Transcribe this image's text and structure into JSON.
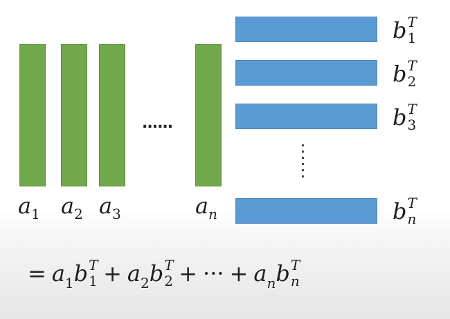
{
  "columns": {
    "a1": {
      "base": "a",
      "sub": "1"
    },
    "a2": {
      "base": "a",
      "sub": "2"
    },
    "a3": {
      "base": "a",
      "sub": "3"
    },
    "an": {
      "base": "a",
      "sub": "n"
    },
    "h_ellipsis": "......"
  },
  "rows": {
    "b1": {
      "base": "b",
      "sub": "1",
      "sup": "T"
    },
    "b2": {
      "base": "b",
      "sub": "2",
      "sup": "T"
    },
    "b3": {
      "base": "b",
      "sub": "3",
      "sup": "T"
    },
    "bn": {
      "base": "b",
      "sub": "n",
      "sup": "T"
    },
    "v_ellipsis": [
      "·",
      "·",
      "·",
      "·",
      "·",
      "·"
    ]
  },
  "formula": {
    "equals": "=",
    "plus": "+",
    "cdots": "···",
    "a": "a",
    "b": "b",
    "T": "T",
    "s1": "1",
    "s2": "2",
    "sn": "n"
  },
  "colors": {
    "column_bar": "#72a84b",
    "row_bar": "#5b9bd5",
    "text": "#1e1e1e"
  }
}
